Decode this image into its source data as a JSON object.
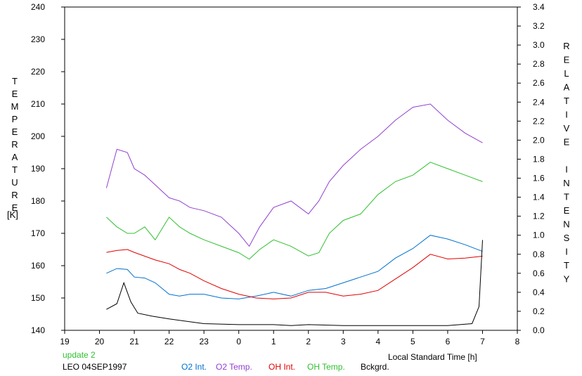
{
  "chart_data": {
    "type": "line",
    "xlabel": "Local Standard Time [h]",
    "ylabel_left": "TEMPERATURE",
    "ylabel_left_unit": "[K]",
    "ylabel_right": "RELATIVE INTENSITY",
    "x_ticks": [
      "19",
      "20",
      "21",
      "22",
      "23",
      "0",
      "1",
      "2",
      "3",
      "4",
      "5",
      "6",
      "7",
      "8"
    ],
    "xlim": [
      19,
      32
    ],
    "ylim_left": [
      140,
      240
    ],
    "ylim_right": [
      0.0,
      3.4
    ],
    "y_ticks_left": [
      140,
      150,
      160,
      170,
      180,
      190,
      200,
      210,
      220,
      230,
      240
    ],
    "y_ticks_right": [
      "0.0",
      "0.2",
      "0.4",
      "0.6",
      "0.8",
      "1.0",
      "1.2",
      "1.4",
      "1.6",
      "1.8",
      "2.0",
      "2.2",
      "2.4",
      "2.6",
      "2.8",
      "3.0",
      "3.2",
      "3.4"
    ],
    "grid": false,
    "update_note": "update 2",
    "station_date": "LEO 04SEP1997",
    "series": [
      {
        "name": "O2 Int.",
        "axis": "right",
        "color": "#0070d0",
        "points": [
          [
            20.2,
            0.6
          ],
          [
            20.5,
            0.65
          ],
          [
            20.8,
            0.64
          ],
          [
            21.0,
            0.56
          ],
          [
            21.3,
            0.55
          ],
          [
            21.6,
            0.5
          ],
          [
            22.0,
            0.38
          ],
          [
            22.3,
            0.36
          ],
          [
            22.6,
            0.38
          ],
          [
            23.0,
            0.38
          ],
          [
            23.5,
            0.34
          ],
          [
            24.0,
            0.33
          ],
          [
            24.5,
            0.36
          ],
          [
            25.0,
            0.4
          ],
          [
            25.5,
            0.36
          ],
          [
            26.0,
            0.42
          ],
          [
            26.5,
            0.44
          ],
          [
            27.0,
            0.5
          ],
          [
            27.5,
            0.56
          ],
          [
            28.0,
            0.62
          ],
          [
            28.5,
            0.76
          ],
          [
            29.0,
            0.86
          ],
          [
            29.5,
            1.0
          ],
          [
            30.0,
            0.96
          ],
          [
            30.5,
            0.9
          ],
          [
            31.0,
            0.83
          ]
        ]
      },
      {
        "name": "O2 Temp.",
        "axis": "left",
        "color": "#9040d0",
        "points": [
          [
            20.2,
            184
          ],
          [
            20.5,
            196
          ],
          [
            20.8,
            195
          ],
          [
            21.0,
            190
          ],
          [
            21.3,
            188
          ],
          [
            21.6,
            185
          ],
          [
            22.0,
            181
          ],
          [
            22.3,
            180
          ],
          [
            22.6,
            178
          ],
          [
            23.0,
            177
          ],
          [
            23.5,
            175
          ],
          [
            24.0,
            170
          ],
          [
            24.3,
            166
          ],
          [
            24.6,
            172
          ],
          [
            25.0,
            178
          ],
          [
            25.5,
            180
          ],
          [
            26.0,
            176
          ],
          [
            26.3,
            180
          ],
          [
            26.6,
            186
          ],
          [
            27.0,
            191
          ],
          [
            27.5,
            196
          ],
          [
            28.0,
            200
          ],
          [
            28.5,
            205
          ],
          [
            29.0,
            209
          ],
          [
            29.5,
            210
          ],
          [
            30.0,
            205
          ],
          [
            30.5,
            201
          ],
          [
            31.0,
            198
          ]
        ]
      },
      {
        "name": "OH Int.",
        "axis": "right",
        "color": "#e00000",
        "points": [
          [
            20.2,
            0.82
          ],
          [
            20.5,
            0.84
          ],
          [
            20.8,
            0.85
          ],
          [
            21.0,
            0.82
          ],
          [
            21.3,
            0.78
          ],
          [
            21.6,
            0.74
          ],
          [
            22.0,
            0.7
          ],
          [
            22.3,
            0.64
          ],
          [
            22.6,
            0.6
          ],
          [
            23.0,
            0.52
          ],
          [
            23.5,
            0.44
          ],
          [
            24.0,
            0.38
          ],
          [
            24.5,
            0.34
          ],
          [
            25.0,
            0.33
          ],
          [
            25.5,
            0.34
          ],
          [
            26.0,
            0.4
          ],
          [
            26.5,
            0.4
          ],
          [
            27.0,
            0.36
          ],
          [
            27.5,
            0.38
          ],
          [
            28.0,
            0.42
          ],
          [
            28.5,
            0.54
          ],
          [
            29.0,
            0.66
          ],
          [
            29.5,
            0.8
          ],
          [
            30.0,
            0.75
          ],
          [
            30.5,
            0.76
          ],
          [
            31.0,
            0.78
          ]
        ]
      },
      {
        "name": "OH Temp.",
        "axis": "left",
        "color": "#30c030",
        "points": [
          [
            20.2,
            175
          ],
          [
            20.5,
            172
          ],
          [
            20.8,
            170
          ],
          [
            21.0,
            170
          ],
          [
            21.3,
            172
          ],
          [
            21.6,
            168
          ],
          [
            22.0,
            175
          ],
          [
            22.3,
            172
          ],
          [
            22.6,
            170
          ],
          [
            23.0,
            168
          ],
          [
            23.5,
            166
          ],
          [
            24.0,
            164
          ],
          [
            24.3,
            162
          ],
          [
            24.6,
            165
          ],
          [
            25.0,
            168
          ],
          [
            25.5,
            166
          ],
          [
            26.0,
            163
          ],
          [
            26.3,
            164
          ],
          [
            26.6,
            170
          ],
          [
            27.0,
            174
          ],
          [
            27.5,
            176
          ],
          [
            28.0,
            182
          ],
          [
            28.5,
            186
          ],
          [
            29.0,
            188
          ],
          [
            29.5,
            192
          ],
          [
            30.0,
            190
          ],
          [
            30.5,
            188
          ],
          [
            31.0,
            186
          ]
        ]
      },
      {
        "name": "Bckgrd.",
        "axis": "right",
        "color": "#000000",
        "points": [
          [
            20.2,
            0.22
          ],
          [
            20.5,
            0.28
          ],
          [
            20.7,
            0.5
          ],
          [
            20.9,
            0.3
          ],
          [
            21.1,
            0.18
          ],
          [
            21.5,
            0.15
          ],
          [
            22.0,
            0.12
          ],
          [
            23.0,
            0.07
          ],
          [
            24.0,
            0.06
          ],
          [
            25.0,
            0.06
          ],
          [
            25.5,
            0.05
          ],
          [
            26.0,
            0.06
          ],
          [
            27.0,
            0.05
          ],
          [
            28.0,
            0.05
          ],
          [
            29.0,
            0.05
          ],
          [
            30.0,
            0.05
          ],
          [
            30.7,
            0.07
          ],
          [
            30.9,
            0.25
          ],
          [
            31.0,
            0.95
          ]
        ]
      }
    ]
  }
}
